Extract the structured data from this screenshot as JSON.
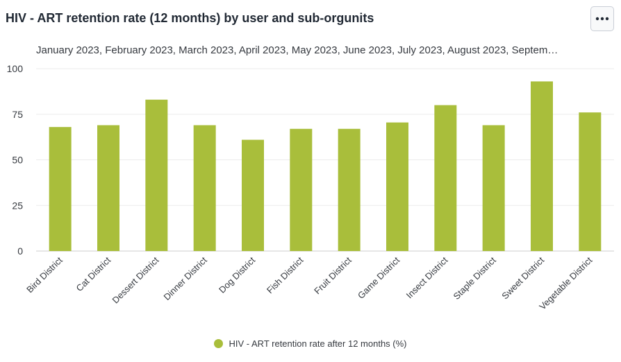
{
  "title": "HIV - ART retention rate (12 months) by user and sub-orgunits",
  "subtitle": "January 2023, February 2023, March 2023, April 2023, May 2023, June 2023, July 2023, August 2023, Septem…",
  "menu": {
    "icon": "more-horizontal-icon"
  },
  "colors": {
    "bar": "#a9be3b",
    "grid": "#ebebeb",
    "axis": "#cccccc",
    "text": "#35393f"
  },
  "chart_data": {
    "type": "bar",
    "categories": [
      "Bird District",
      "Cat District",
      "Dessert District",
      "Dinner District",
      "Dog District",
      "Fish District",
      "Fruit District",
      "Game District",
      "Insect District",
      "Staple District",
      "Sweet District",
      "Vegetable District"
    ],
    "series": [
      {
        "name": "HIV - ART retention rate after 12 months (%)",
        "values": [
          68,
          69,
          83,
          69,
          61,
          67,
          67,
          70.5,
          80,
          69,
          93,
          76
        ]
      }
    ],
    "ylim": [
      0,
      100
    ],
    "yticks": [
      0,
      25,
      50,
      75,
      100
    ],
    "legend_position": "bottom-center",
    "grid": true
  }
}
